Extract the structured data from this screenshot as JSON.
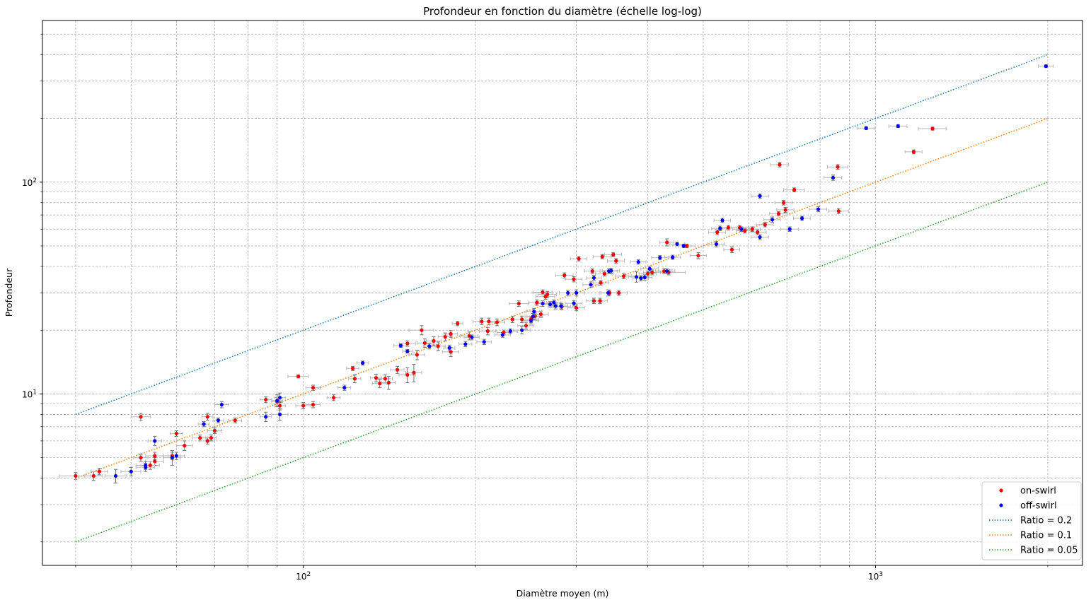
{
  "colors": {
    "on_swirl": "#ff0000",
    "off_swirl": "#0000ff",
    "ratio_02": "#1f77b4",
    "ratio_01": "#ff7f0e",
    "ratio_005": "#2ca02c",
    "errorbar_x": "#b8b8b8",
    "errorbar_y": "#707070",
    "grid": "#b0b0b0"
  },
  "chart_data": {
    "type": "scatter",
    "title": "Profondeur en fonction du diamètre (échelle log-log)",
    "xlabel": "Diamètre moyen (m)",
    "ylabel": "Profondeur",
    "xscale": "log",
    "yscale": "log",
    "xlim": [
      35,
      2300
    ],
    "ylim": [
      1.55,
      580
    ],
    "grid": "major and minor, dashed",
    "legend_position": "lower right",
    "x_ticks": [
      {
        "value": 100,
        "base": "10",
        "exp": "2"
      },
      {
        "value": 1000,
        "base": "10",
        "exp": "3"
      }
    ],
    "y_ticks": [
      {
        "value": 10,
        "base": "10",
        "exp": "1"
      },
      {
        "value": 100,
        "base": "10",
        "exp": "2"
      }
    ],
    "series": [
      {
        "name": "on-swirl",
        "kind": "points",
        "color_key": "on_swirl",
        "points": [
          [
            40,
            4.1,
            2.5,
            0.15
          ],
          [
            43,
            4.1,
            1.5,
            0.2
          ],
          [
            44,
            4.3,
            1.5,
            0.15
          ],
          [
            52,
            7.8,
            2,
            0.3
          ],
          [
            52,
            5.0,
            1.5,
            0.2
          ],
          [
            54,
            4.6,
            2,
            0.2
          ],
          [
            55,
            5.1,
            2,
            0.2
          ],
          [
            55,
            4.8,
            2,
            0.2
          ],
          [
            59,
            5.1,
            2,
            0.2
          ],
          [
            60,
            6.5,
            1.5,
            0.2
          ],
          [
            62,
            5.7,
            2,
            0.3
          ],
          [
            66,
            6.2,
            2,
            0.2
          ],
          [
            68,
            7.8,
            1.5,
            0.3
          ],
          [
            68,
            6.0,
            2,
            0.2
          ],
          [
            69,
            6.2,
            1.5,
            0.2
          ],
          [
            70,
            6.7,
            2,
            0.2
          ],
          [
            76,
            7.5,
            2,
            0.2
          ],
          [
            86,
            9.4,
            2,
            0.3
          ],
          [
            90,
            9.2,
            2,
            0.4
          ],
          [
            91,
            8.8,
            2,
            0.4
          ],
          [
            98,
            12.1,
            4,
            0.2
          ],
          [
            100,
            8.8,
            3,
            0.3
          ],
          [
            104,
            10.7,
            3,
            0.3
          ],
          [
            104,
            8.9,
            3,
            0.3
          ],
          [
            113,
            9.6,
            3,
            0.3
          ],
          [
            122,
            13.2,
            3,
            0.3
          ],
          [
            123,
            11.8,
            3,
            0.5
          ],
          [
            134,
            11.9,
            3,
            0.5
          ],
          [
            136,
            11.2,
            4,
            0.5
          ],
          [
            139,
            11.8,
            4,
            0.5
          ],
          [
            141,
            11.3,
            4,
            0.8
          ],
          [
            146,
            13.0,
            4,
            0.5
          ],
          [
            152,
            12.3,
            5,
            1.0
          ],
          [
            156,
            12.6,
            5,
            1.2
          ],
          [
            152,
            17.3,
            5,
            0.5
          ],
          [
            158,
            15.3,
            5,
            0.8
          ],
          [
            161,
            20.0,
            8,
            1.0
          ],
          [
            163,
            17.4,
            5,
            0.8
          ],
          [
            169,
            17.8,
            5,
            0.8
          ],
          [
            177,
            18.6,
            5,
            0.8
          ],
          [
            181,
            19.2,
            5,
            0.7
          ],
          [
            172,
            16.8,
            5,
            0.8
          ],
          [
            181,
            15.8,
            6,
            0.8
          ],
          [
            186,
            21.5,
            4,
            0.5
          ],
          [
            195,
            18.8,
            7,
            0.8
          ],
          [
            205,
            22.0,
            7,
            0.8
          ],
          [
            211,
            22.0,
            8,
            0.8
          ],
          [
            210,
            19.8,
            7,
            0.8
          ],
          [
            218,
            21.8,
            7,
            0.8
          ],
          [
            224,
            19.5,
            6,
            0.5
          ],
          [
            232,
            22.5,
            8,
            0.8
          ],
          [
            238,
            26.7,
            9,
            0.8
          ],
          [
            241,
            22.5,
            8,
            0.8
          ],
          [
            245,
            21.0,
            8,
            0.8
          ],
          [
            250,
            22.5,
            8,
            0.8
          ],
          [
            254,
            23.3,
            8,
            0.8
          ],
          [
            256,
            27.0,
            8,
            0.8
          ],
          [
            260,
            23.8,
            8,
            0.8
          ],
          [
            262,
            30.2,
            10,
            0.8
          ],
          [
            265,
            28.8,
            10,
            0.8
          ],
          [
            267,
            29.5,
            10,
            1.0
          ],
          [
            283,
            25.8,
            10,
            0.8
          ],
          [
            286,
            36.3,
            10,
            1.0
          ],
          [
            297,
            34.8,
            10,
            1.0
          ],
          [
            303,
            43.5,
            10,
            1.0
          ],
          [
            300,
            25.5,
            10,
            0.8
          ],
          [
            320,
            38.0,
            10,
            1.0
          ],
          [
            322,
            27.5,
            10,
            0.8
          ],
          [
            330,
            27.5,
            10,
            0.8
          ],
          [
            331,
            33.5,
            10,
            0.8
          ],
          [
            333,
            44.5,
            12,
            1.0
          ],
          [
            336,
            37.0,
            12,
            1.0
          ],
          [
            343,
            30.0,
            12,
            0.8
          ],
          [
            348,
            45.5,
            12,
            1.0
          ],
          [
            352,
            42.5,
            12,
            1.0
          ],
          [
            356,
            30.0,
            12,
            0.8
          ],
          [
            363,
            36.0,
            12,
            1.0
          ],
          [
            400,
            37.0,
            14,
            1.0
          ],
          [
            407,
            37.5,
            14,
            1.0
          ],
          [
            427,
            38.0,
            14,
            1.0
          ],
          [
            432,
            52.0,
            12,
            2.0
          ],
          [
            435,
            37.5,
            30,
            1.0
          ],
          [
            468,
            50.0,
            16,
            1.0
          ],
          [
            490,
            45.0,
            16,
            1.5
          ],
          [
            529,
            58.0,
            18,
            1.5
          ],
          [
            553,
            61.0,
            20,
            1.5
          ],
          [
            561,
            48.0,
            18,
            1.5
          ],
          [
            579,
            61.0,
            20,
            1.5
          ],
          [
            591,
            59.0,
            20,
            1.5
          ],
          [
            609,
            60.0,
            20,
            1.5
          ],
          [
            622,
            58.0,
            22,
            1.5
          ],
          [
            641,
            63.0,
            22,
            1.5
          ],
          [
            677,
            71.0,
            24,
            1.5
          ],
          [
            680,
            121.0,
            25,
            3.0
          ],
          [
            691,
            80.0,
            24,
            2.0
          ],
          [
            696,
            74.0,
            24,
            2.0
          ],
          [
            721,
            92.0,
            30,
            2.0
          ],
          [
            859,
            118.0,
            35,
            3.0
          ],
          [
            862,
            73.0,
            35,
            2.0
          ],
          [
            1166,
            139.0,
            40,
            3.0
          ],
          [
            1258,
            179.0,
            70,
            3.0
          ]
        ]
      },
      {
        "name": "off-swirl",
        "kind": "points",
        "color_key": "off_swirl",
        "points": [
          [
            47,
            4.1,
            2,
            0.3
          ],
          [
            50,
            4.3,
            2,
            0.2
          ],
          [
            53,
            4.6,
            2,
            0.2
          ],
          [
            53,
            4.5,
            2,
            0.2
          ],
          [
            55,
            6.0,
            1.5,
            0.3
          ],
          [
            59,
            5.0,
            2,
            0.4
          ],
          [
            60,
            5.1,
            2,
            0.2
          ],
          [
            67,
            7.2,
            1.5,
            0.2
          ],
          [
            71,
            7.5,
            1.5,
            0.2
          ],
          [
            72,
            8.9,
            2,
            0.3
          ],
          [
            86,
            7.8,
            2,
            0.4
          ],
          [
            90,
            9.3,
            2,
            0.6
          ],
          [
            91,
            9.6,
            2,
            0.5
          ],
          [
            91,
            8.0,
            3,
            0.5
          ],
          [
            118,
            10.7,
            3,
            0.3
          ],
          [
            127,
            14.0,
            3,
            0.3
          ],
          [
            148,
            16.9,
            4,
            0.3
          ],
          [
            152,
            15.9,
            3,
            0.3
          ],
          [
            166,
            16.8,
            4,
            0.5
          ],
          [
            180,
            16.5,
            4,
            0.5
          ],
          [
            192,
            17.2,
            5,
            0.5
          ],
          [
            197,
            18.5,
            6,
            0.5
          ],
          [
            207,
            17.6,
            6,
            0.5
          ],
          [
            223,
            19.0,
            7,
            0.5
          ],
          [
            230,
            19.8,
            7,
            0.5
          ],
          [
            241,
            20.0,
            8,
            0.8
          ],
          [
            250,
            22.2,
            8,
            0.8
          ],
          [
            252,
            23.2,
            8,
            0.8
          ],
          [
            253,
            24.5,
            8,
            0.8
          ],
          [
            262,
            26.7,
            8,
            0.8
          ],
          [
            270,
            26.5,
            8,
            0.8
          ],
          [
            274,
            27.0,
            8,
            0.8
          ],
          [
            276,
            26.0,
            8,
            0.8
          ],
          [
            282,
            26.0,
            8,
            0.8
          ],
          [
            290,
            30.0,
            10,
            0.8
          ],
          [
            297,
            26.8,
            10,
            0.8
          ],
          [
            300,
            30.0,
            10,
            1.0
          ],
          [
            318,
            32.8,
            10,
            1.0
          ],
          [
            322,
            35.3,
            10,
            1.0
          ],
          [
            341,
            30.0,
            12,
            1.0
          ],
          [
            342,
            38.0,
            12,
            1.0
          ],
          [
            345,
            38.2,
            12,
            1.0
          ],
          [
            382,
            35.7,
            12,
            2.0
          ],
          [
            385,
            42.0,
            12,
            1.0
          ],
          [
            389,
            35.2,
            12,
            1.0
          ],
          [
            395,
            35.5,
            12,
            1.0
          ],
          [
            403,
            39.0,
            14,
            1.0
          ],
          [
            420,
            44.0,
            14,
            1.0
          ],
          [
            432,
            38.0,
            14,
            1.0
          ],
          [
            442,
            44.2,
            14,
            1.0
          ],
          [
            450,
            51.0,
            14,
            1.0
          ],
          [
            462,
            50.0,
            14,
            1.0
          ],
          [
            527,
            51.0,
            18,
            1.5
          ],
          [
            535,
            60.5,
            18,
            1.5
          ],
          [
            540,
            66.0,
            18,
            1.5
          ],
          [
            583,
            60.0,
            20,
            1.5
          ],
          [
            628,
            55.0,
            22,
            1.5
          ],
          [
            628,
            86.0,
            22,
            2.0
          ],
          [
            660,
            66.5,
            22,
            2.0
          ],
          [
            708,
            60.0,
            25,
            1.5
          ],
          [
            744,
            67.5,
            25,
            1.5
          ],
          [
            794,
            74.5,
            28,
            2.0
          ],
          [
            843,
            105.0,
            30,
            3.0
          ],
          [
            963,
            180.0,
            35,
            3.0
          ],
          [
            1095,
            184.0,
            40,
            3.0
          ],
          [
            1985,
            353.0,
            60,
            5.0
          ]
        ]
      },
      {
        "name": "Ratio = 0.2",
        "kind": "line",
        "color_key": "ratio_02",
        "dash": "1.6,2.2",
        "ratio": 0.2,
        "x": [
          40,
          2000
        ]
      },
      {
        "name": "Ratio = 0.1",
        "kind": "line",
        "color_key": "ratio_01",
        "dash": "1.6,2.2",
        "ratio": 0.1,
        "x": [
          40,
          2000
        ]
      },
      {
        "name": "Ratio = 0.05",
        "kind": "line",
        "color_key": "ratio_005",
        "dash": "1.6,2.2",
        "ratio": 0.05,
        "x": [
          40,
          2000
        ]
      }
    ]
  }
}
